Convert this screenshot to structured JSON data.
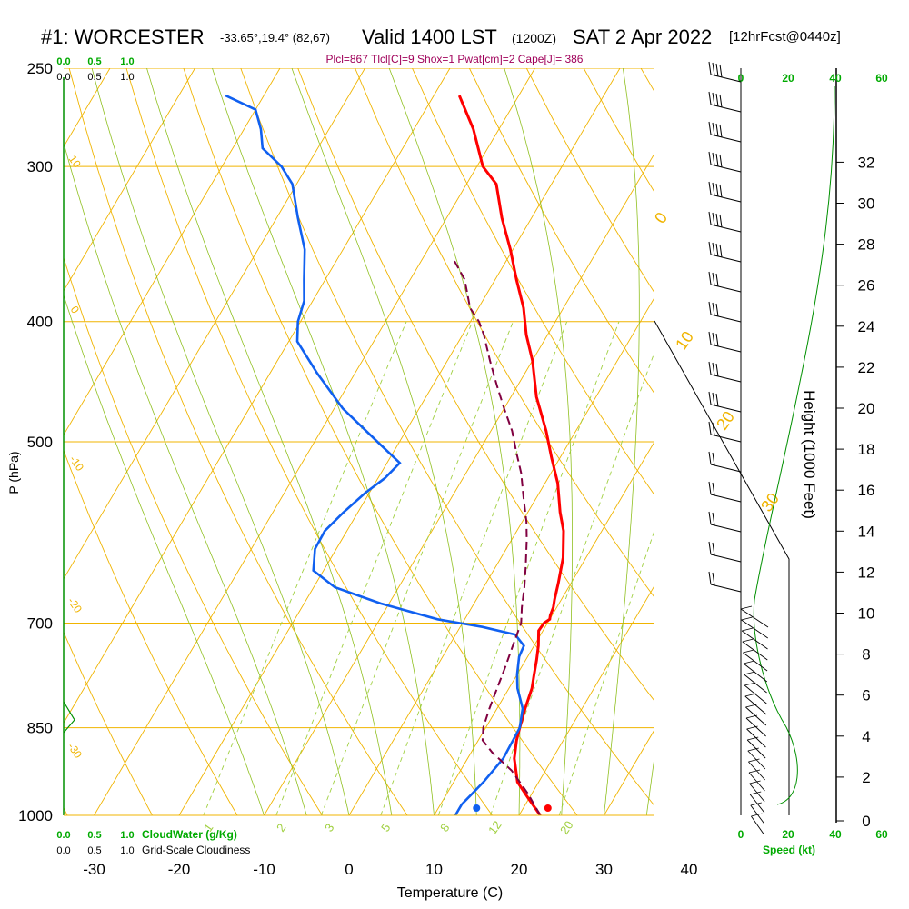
{
  "header": {
    "station": "#1: WORCESTER",
    "coords": "-33.65°,19.4° (82,67)",
    "valid": "Valid 1400 LST",
    "utc": "(1200Z)",
    "date": "SAT 2 Apr 2022",
    "forecast": "[12hrFcst@0440z]"
  },
  "diagnostics": "Plcl=867 Tlcl[C]=9 Shox=1 Pwat[cm]=2 Cape[J]= 386",
  "colors": {
    "isotherm": "#f0b400",
    "dry_adiabat": "#f0b400",
    "moist_adiabat": "#90c020",
    "mixing_ratio": "#a0d040",
    "temperature": "#ff0000",
    "dewpoint": "#1060f0",
    "parcel": "#800040",
    "height_scale": "#009000",
    "label_green": "#00aa00",
    "diagnostics": "#a0005a"
  },
  "chart_data": {
    "type": "line",
    "subtype": "skew-T log-P sounding",
    "xlabel": "Temperature (C)",
    "ylabel": "P (hPa)",
    "y2label": "Height (1000 Feet)",
    "xlim": [
      -35,
      45
    ],
    "ylim": [
      1000,
      250
    ],
    "y_scale": "log",
    "x_ticks": [
      -30,
      -20,
      -10,
      0,
      10,
      20,
      30,
      40
    ],
    "y_ticks": [
      250,
      300,
      400,
      500,
      700,
      850,
      1000
    ],
    "height_ticks": [
      0,
      2,
      4,
      6,
      8,
      10,
      12,
      14,
      16,
      18,
      20,
      22,
      24,
      26,
      28,
      30,
      32
    ],
    "isotherm_labels": [
      "-10",
      "0",
      "10",
      "20",
      "30"
    ],
    "adiabat_labels": [
      "10",
      "0",
      "-10",
      "-20",
      "-30"
    ],
    "mixing_ratio_labels": [
      "1",
      "2",
      "3",
      "5",
      "8",
      "12",
      "20"
    ],
    "surface_temperature": 23.4,
    "surface_dewpoint": 15,
    "series": [
      {
        "name": "temperature",
        "points": [
          [
            22.5,
            1000
          ],
          [
            20,
            970
          ],
          [
            17.5,
            940
          ],
          [
            15.5,
            900
          ],
          [
            14.5,
            870
          ],
          [
            14,
            850
          ],
          [
            13.3,
            820
          ],
          [
            12.7,
            790
          ],
          [
            12,
            770
          ],
          [
            11.3,
            750
          ],
          [
            10.5,
            730
          ],
          [
            9.5,
            710
          ],
          [
            9.6,
            700
          ],
          [
            10,
            695
          ],
          [
            9.8,
            690
          ],
          [
            9.6,
            680
          ],
          [
            9.2,
            670
          ],
          [
            8.5,
            650
          ],
          [
            7.3,
            620
          ],
          [
            5.5,
            590
          ],
          [
            3.8,
            570
          ],
          [
            1.5,
            540
          ],
          [
            -1,
            515
          ],
          [
            -3.5,
            490
          ],
          [
            -7,
            460
          ],
          [
            -10,
            430
          ],
          [
            -12.5,
            410
          ],
          [
            -14.7,
            390
          ],
          [
            -17.5,
            370
          ],
          [
            -20.3,
            350
          ],
          [
            -23.5,
            330
          ],
          [
            -26.5,
            310
          ],
          [
            -29.3,
            300
          ],
          [
            -33,
            280
          ],
          [
            -37,
            263
          ]
        ]
      },
      {
        "name": "dewpoint",
        "points": [
          [
            12.5,
            1000
          ],
          [
            12.5,
            980
          ],
          [
            13,
            960
          ],
          [
            13.5,
            940
          ],
          [
            14.2,
            900
          ],
          [
            14,
            850
          ],
          [
            13,
            820
          ],
          [
            11,
            790
          ],
          [
            10,
            770
          ],
          [
            9,
            745
          ],
          [
            8.8,
            730
          ],
          [
            7,
            715
          ],
          [
            2.6,
            705
          ],
          [
            -3.2,
            695
          ],
          [
            -11,
            675
          ],
          [
            -17.5,
            655
          ],
          [
            -21.2,
            635
          ],
          [
            -22.5,
            610
          ],
          [
            -22.6,
            590
          ],
          [
            -21.7,
            570
          ],
          [
            -20.5,
            550
          ],
          [
            -19.2,
            535
          ],
          [
            -18.5,
            520
          ],
          [
            -22.6,
            500
          ],
          [
            -29,
            470
          ],
          [
            -34.5,
            440
          ],
          [
            -39,
            415
          ],
          [
            -40.3,
            400
          ],
          [
            -41,
            385
          ],
          [
            -42.5,
            370
          ],
          [
            -44.5,
            350
          ],
          [
            -47.5,
            330
          ],
          [
            -50.5,
            310
          ],
          [
            -53,
            300
          ],
          [
            -56.5,
            290
          ],
          [
            -58,
            280
          ],
          [
            -60,
            270
          ],
          [
            -64.5,
            263
          ]
        ]
      },
      {
        "name": "parcel",
        "points": [
          [
            22.5,
            1000
          ],
          [
            19.5,
            960
          ],
          [
            16,
            920
          ],
          [
            12.5,
            890
          ],
          [
            10.5,
            870
          ],
          [
            9.7,
            850
          ],
          [
            9.1,
            820
          ],
          [
            8.6,
            790
          ],
          [
            8.1,
            760
          ],
          [
            7.5,
            730
          ],
          [
            6.9,
            700
          ],
          [
            5.9,
            680
          ],
          [
            4.8,
            655
          ],
          [
            3.5,
            630
          ],
          [
            1.8,
            600
          ],
          [
            0.5,
            580
          ],
          [
            -1.5,
            555
          ],
          [
            -3.5,
            530
          ],
          [
            -5.5,
            510
          ],
          [
            -7.5,
            490
          ],
          [
            -10,
            470
          ],
          [
            -12.5,
            450
          ],
          [
            -15,
            430
          ],
          [
            -17.5,
            410
          ],
          [
            -19,
            400
          ],
          [
            -21,
            390
          ],
          [
            -23.6,
            370
          ],
          [
            -26.6,
            355
          ]
        ]
      }
    ]
  },
  "wind_axis": {
    "ticks": [
      "0",
      "20",
      "40",
      "60"
    ],
    "label": "Speed (kt)"
  },
  "cloud_axis": {
    "scale": [
      "0.0",
      "0.5",
      "1.0"
    ],
    "cloudwater_label": "CloudWater (g/Kg)",
    "cloudiness_label": "Grid-Scale Cloudiness"
  }
}
